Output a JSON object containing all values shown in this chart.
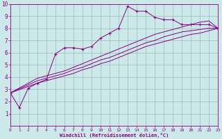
{
  "bg_color": "#cce8e8",
  "line_color": "#880088",
  "grid_color": "#99bbbb",
  "xlabel": "Windchill (Refroidissement éolien,°C)",
  "xlim": [
    0,
    23
  ],
  "ylim": [
    0,
    10
  ],
  "xticks": [
    0,
    1,
    2,
    3,
    4,
    5,
    6,
    7,
    8,
    9,
    10,
    11,
    12,
    13,
    14,
    15,
    16,
    17,
    18,
    19,
    20,
    21,
    22,
    23
  ],
  "yticks": [
    1,
    2,
    3,
    4,
    5,
    6,
    7,
    8,
    9,
    10
  ],
  "figsize": [
    3.2,
    2.0
  ],
  "dpi": 100,
  "lines": [
    {
      "x": [
        0,
        1,
        2,
        3,
        4,
        5,
        6,
        7,
        8,
        9,
        10,
        11,
        12,
        13,
        14,
        15,
        16,
        17,
        18,
        19,
        20,
        21,
        22,
        23
      ],
      "y": [
        2.7,
        1.5,
        3.1,
        3.5,
        3.8,
        5.9,
        6.4,
        6.4,
        6.3,
        6.5,
        7.2,
        7.6,
        8.0,
        9.8,
        9.4,
        9.4,
        8.9,
        8.7,
        8.7,
        8.3,
        8.3,
        8.3,
        8.3,
        8.0
      ],
      "has_markers": true
    },
    {
      "x": [
        0,
        3,
        4,
        5,
        6,
        7,
        8,
        9,
        10,
        11,
        12,
        13,
        14,
        15,
        16,
        17,
        18,
        19,
        20,
        21,
        22,
        23
      ],
      "y": [
        2.7,
        3.9,
        4.1,
        4.3,
        4.5,
        4.8,
        5.1,
        5.4,
        5.7,
        6.0,
        6.3,
        6.6,
        6.9,
        7.2,
        7.5,
        7.7,
        7.9,
        8.1,
        8.3,
        8.5,
        8.6,
        8.0
      ],
      "has_markers": false
    },
    {
      "x": [
        0,
        3,
        4,
        5,
        6,
        7,
        8,
        9,
        10,
        11,
        12,
        13,
        14,
        15,
        16,
        17,
        18,
        19,
        20,
        21,
        22,
        23
      ],
      "y": [
        2.7,
        3.7,
        3.9,
        4.1,
        4.3,
        4.6,
        4.8,
        5.1,
        5.4,
        5.6,
        5.9,
        6.2,
        6.5,
        6.8,
        7.0,
        7.3,
        7.5,
        7.7,
        7.8,
        7.9,
        8.0,
        8.0
      ],
      "has_markers": false
    },
    {
      "x": [
        0,
        3,
        4,
        5,
        6,
        7,
        8,
        9,
        10,
        11,
        12,
        13,
        14,
        15,
        16,
        17,
        18,
        19,
        20,
        21,
        22,
        23
      ],
      "y": [
        2.7,
        3.5,
        3.7,
        3.9,
        4.1,
        4.3,
        4.6,
        4.8,
        5.1,
        5.3,
        5.6,
        5.9,
        6.2,
        6.5,
        6.7,
        6.9,
        7.1,
        7.3,
        7.5,
        7.6,
        7.8,
        8.0
      ],
      "has_markers": false
    }
  ]
}
